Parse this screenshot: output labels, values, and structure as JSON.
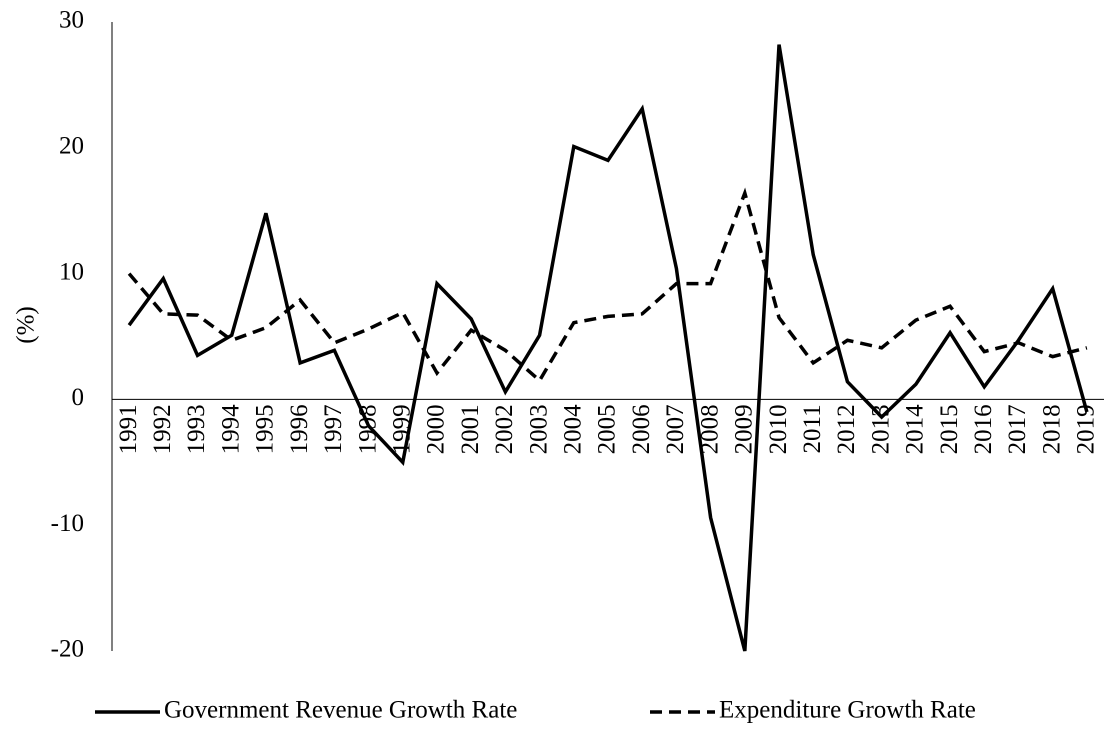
{
  "chart_data": {
    "type": "line",
    "y_label": "(%)",
    "categories": [
      "1991",
      "1992",
      "1993",
      "1994",
      "1995",
      "1996",
      "1997",
      "1998",
      "1999",
      "2000",
      "2001",
      "2002",
      "2003",
      "2004",
      "2005",
      "2006",
      "2007",
      "2008",
      "2009",
      "2010",
      "2011",
      "2012",
      "2013",
      "2014",
      "2015",
      "2016",
      "2017",
      "2018",
      "2019"
    ],
    "series": [
      {
        "name": "Government Revenue Growth Rate",
        "color": "#000000",
        "linestyle": "solid",
        "values": [
          5.9,
          9.6,
          3.5,
          5.1,
          14.8,
          2.9,
          3.9,
          -2.1,
          -5.0,
          9.2,
          6.4,
          0.6,
          5.1,
          20.1,
          19.0,
          23.1,
          10.4,
          -9.4,
          -20,
          28.2,
          11.5,
          1.4,
          -1.4,
          1.2,
          5.3,
          1.0,
          4.7,
          8.8,
          -1.0
        ]
      },
      {
        "name": "Expenditure Growth Rate",
        "color": "#000000",
        "linestyle": "dashed",
        "values": [
          10.0,
          6.8,
          6.7,
          4.7,
          5.7,
          7.9,
          4.5,
          5.6,
          6.9,
          2.1,
          5.5,
          3.9,
          1.5,
          6.1,
          6.6,
          6.8,
          9.2,
          9.2,
          16.4,
          6.5,
          2.9,
          4.7,
          4.1,
          6.3,
          7.4,
          3.8,
          4.5,
          3.4,
          4.1
        ]
      }
    ],
    "ylim": [
      -20,
      30
    ],
    "yticks": [
      -20,
      -10,
      0,
      10,
      20,
      30
    ],
    "grid": false,
    "legend": "bottom"
  }
}
